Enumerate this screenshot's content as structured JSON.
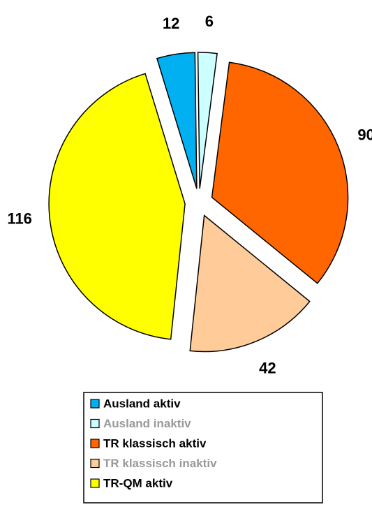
{
  "chart_data": {
    "type": "pie",
    "categories": [
      "Ausland aktiv",
      "Ausland inaktiv",
      "TR klassisch aktiv",
      "TR klassisch inaktiv",
      "TR-QM aktiv"
    ],
    "values": [
      12,
      6,
      90,
      42,
      116
    ],
    "colors": [
      "#00b0f0",
      "#ccffff",
      "#ff6600",
      "#ffcc99",
      "#ffff00"
    ],
    "startangle": -17,
    "legend": "bottom"
  }
}
